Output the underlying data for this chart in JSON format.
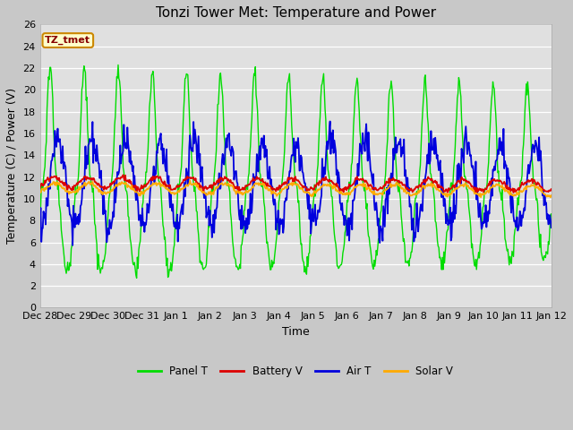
{
  "title": "Tonzi Tower Met: Temperature and Power",
  "xlabel": "Time",
  "ylabel": "Temperature (C) / Power (V)",
  "ylim": [
    0,
    26
  ],
  "yticks": [
    0,
    2,
    4,
    6,
    8,
    10,
    12,
    14,
    16,
    18,
    20,
    22,
    24,
    26
  ],
  "x_labels": [
    "Dec 28",
    "Dec 29",
    "Dec 30",
    "Dec 31",
    "Jan 1",
    "Jan 2",
    "Jan 3",
    "Jan 4",
    "Jan 5",
    "Jan 6",
    "Jan 7",
    "Jan 8",
    "Jan 9",
    "Jan 10",
    "Jan 11",
    "Jan 12"
  ],
  "bg_color": "#e0e0e0",
  "fig_color": "#c8c8c8",
  "panel_T_color": "#00dd00",
  "battery_V_color": "#dd0000",
  "air_T_color": "#0000dd",
  "solar_V_color": "#ffaa00",
  "legend_label": "TZ_tmet",
  "legend_entries": [
    "Panel T",
    "Battery V",
    "Air T",
    "Solar V"
  ],
  "title_fontsize": 11,
  "axis_fontsize": 9,
  "tick_fontsize": 8
}
